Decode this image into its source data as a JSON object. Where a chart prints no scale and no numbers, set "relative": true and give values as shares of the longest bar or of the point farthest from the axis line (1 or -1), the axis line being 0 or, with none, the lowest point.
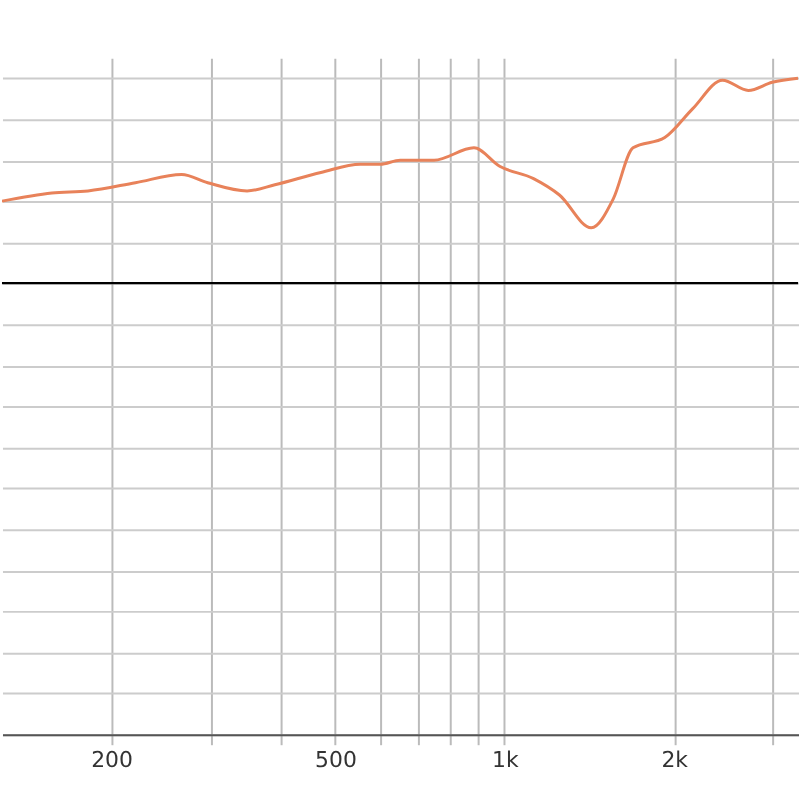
{
  "chart_data": {
    "type": "line",
    "relative": true,
    "log": "x",
    "grid": true,
    "x": [
      128,
      157,
      182,
      221,
      267,
      297,
      349,
      391,
      472,
      555,
      602,
      653,
      750,
      883,
      981,
      1127,
      1253,
      1427,
      1561,
      1693,
      1928,
      2160,
      2442,
      2714,
      2993,
      3326
    ],
    "xlim": [
      128,
      3326
    ],
    "xticks": [
      {
        "value": 200,
        "label": "200"
      },
      {
        "value": 300,
        "label": null
      },
      {
        "value": 400,
        "label": null
      },
      {
        "value": 500,
        "label": "500"
      },
      {
        "value": 600,
        "label": null
      },
      {
        "value": 700,
        "label": null
      },
      {
        "value": 800,
        "label": null
      },
      {
        "value": 900,
        "label": null
      },
      {
        "value": 1000,
        "label": "1k"
      },
      {
        "value": 2000,
        "label": "2k"
      },
      {
        "value": 3000,
        "label": null
      }
    ],
    "tick_labels": "x",
    "series": [
      {
        "color": "#e8825a",
        "values": [
          0.4,
          0.44,
          0.45,
          0.49,
          0.53,
          0.49,
          0.45,
          0.48,
          0.54,
          0.58,
          0.58,
          0.6,
          0.6,
          0.66,
          0.57,
          0.51,
          0.43,
          0.27,
          0.41,
          0.66,
          0.71,
          0.85,
          0.99,
          0.94,
          0.98,
          1.0
        ]
      }
    ]
  }
}
